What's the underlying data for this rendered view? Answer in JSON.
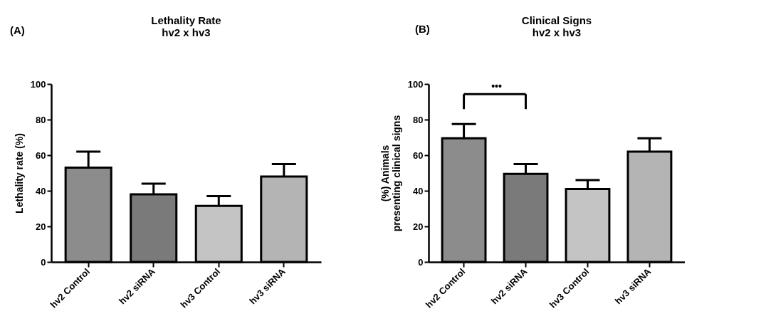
{
  "chart_data": [
    {
      "type": "bar",
      "title": "Lethality Rate",
      "subtitle": "hv2 x hv3",
      "ylabel": "Lethality rate (%)",
      "categories": [
        "hv2 Control",
        "hv2 siRNA",
        "hv3 Control",
        "hv3 siRNA"
      ],
      "values": [
        53,
        38,
        31.5,
        48
      ],
      "errors": [
        [
          53,
          62
        ],
        [
          38,
          44
        ],
        [
          31.5,
          37
        ],
        [
          48,
          55
        ]
      ],
      "colors": [
        "#8c8c8c",
        "#7a7a7a",
        "#c4c4c4",
        "#b4b4b4"
      ],
      "ylim": [
        0,
        100
      ],
      "yticks": [
        0,
        20,
        40,
        60,
        80,
        100
      ],
      "grid": false,
      "annotations": [
        "(A)"
      ]
    },
    {
      "type": "bar",
      "title": "Clinical Signs",
      "subtitle": "hv2 x hv3",
      "ylabel": "(%) Animals\npresenting clinical signs",
      "categories": [
        "hv2 Control",
        "hv2 siRNA",
        "hv3 Control",
        "hv3 siRNA"
      ],
      "values": [
        69.5,
        49.5,
        41,
        62
      ],
      "errors": [
        [
          69.5,
          77.5
        ],
        [
          49.5,
          55
        ],
        [
          41,
          46
        ],
        [
          62,
          69.5
        ]
      ],
      "colors": [
        "#8c8c8c",
        "#7a7a7a",
        "#c4c4c4",
        "#b4b4b4"
      ],
      "ylim": [
        0,
        100
      ],
      "yticks": [
        0,
        20,
        40,
        60,
        80,
        100
      ],
      "grid": false,
      "annotations": [
        "(B)",
        "•••"
      ]
    }
  ]
}
